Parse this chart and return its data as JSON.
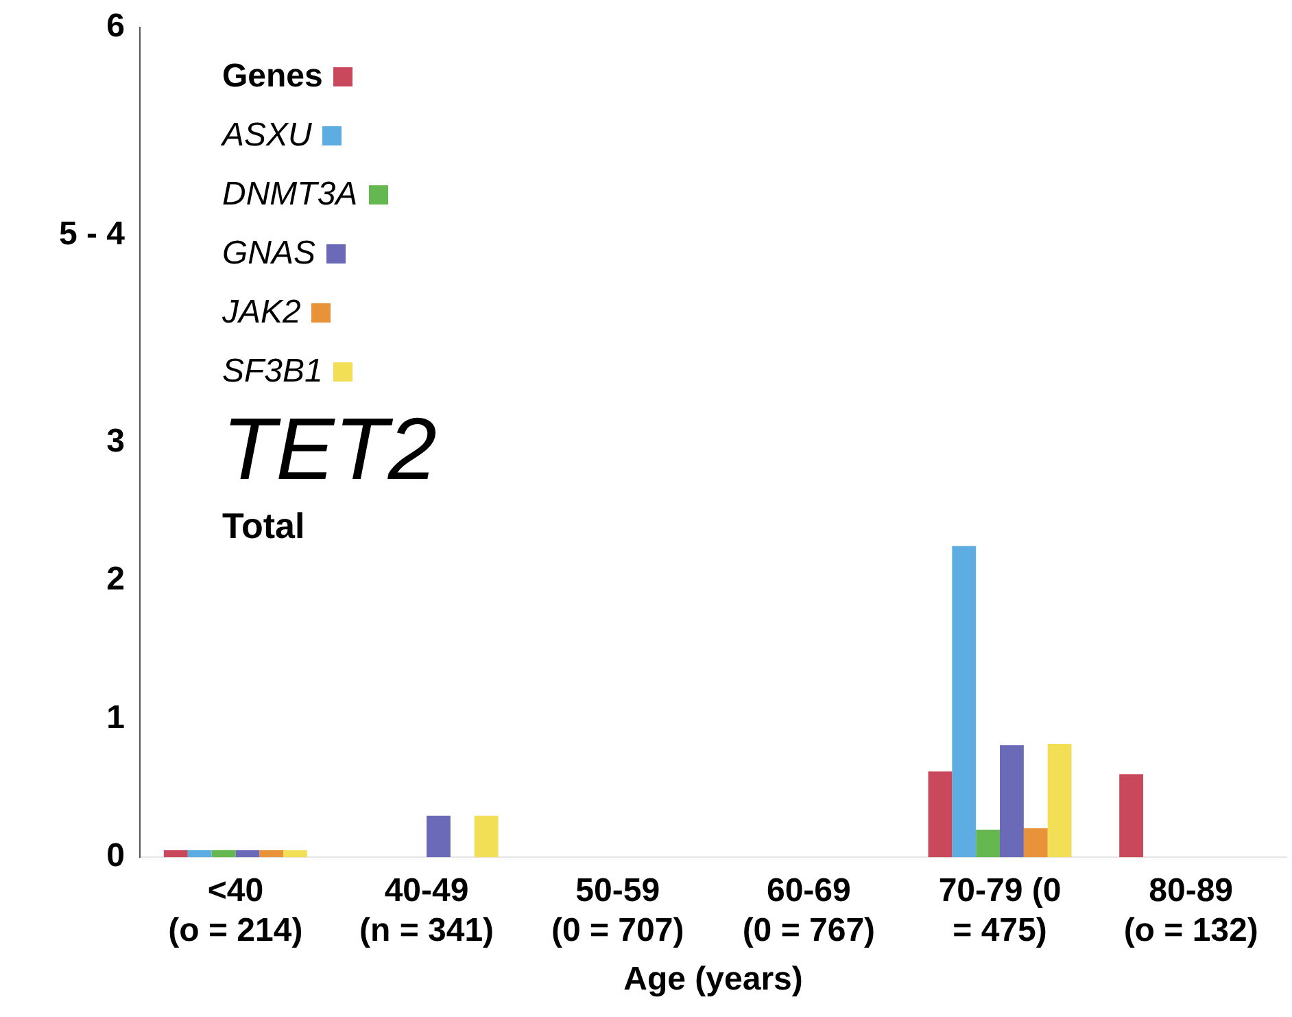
{
  "chart_data": {
    "type": "bar",
    "xlabel": "Age (years)",
    "categories": [
      [
        "<40",
        "(o = 214)"
      ],
      [
        "40-49",
        "(n = 341)"
      ],
      [
        "50-59",
        "(0 = 707)"
      ],
      [
        "60-69",
        "(0 = 767)"
      ],
      [
        "70-79 (0",
        "= 475)"
      ],
      [
        "80-89",
        "(o = 132)"
      ]
    ],
    "series": [
      {
        "name": "Genes",
        "color": "#c9485b",
        "values": [
          0.05,
          null,
          null,
          null,
          0.62,
          0.6
        ]
      },
      {
        "name": "ASXU",
        "color": "#5dade2",
        "values": [
          0.05,
          null,
          null,
          null,
          2.25,
          null
        ]
      },
      {
        "name": "DNMT3A",
        "color": "#65b84f",
        "values": [
          0.05,
          null,
          null,
          null,
          0.2,
          null
        ]
      },
      {
        "name": "GNAS",
        "color": "#6a6ab8",
        "values": [
          0.05,
          0.3,
          null,
          null,
          0.81,
          null
        ]
      },
      {
        "name": "JAK2",
        "color": "#e8923a",
        "values": [
          0.05,
          null,
          null,
          null,
          0.21,
          null
        ]
      },
      {
        "name": "SF3B1",
        "color": "#f2df56",
        "values": [
          0.05,
          0.3,
          null,
          null,
          0.82,
          null
        ]
      }
    ],
    "ylim": [
      0,
      6
    ],
    "yticks": [
      0,
      1,
      2,
      3,
      {
        "value": 4.5,
        "label": "5 - 4"
      },
      6
    ],
    "legend": "top left",
    "annotations": [
      "TET2",
      "Total"
    ]
  }
}
